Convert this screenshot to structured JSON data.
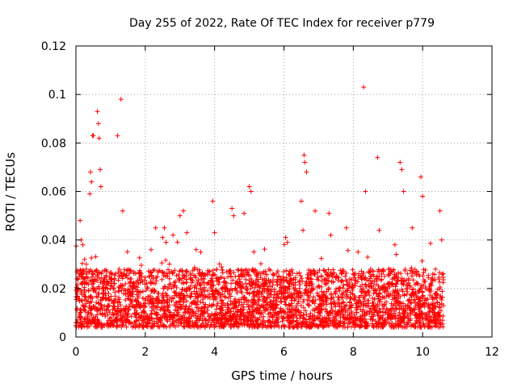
{
  "chart_data": {
    "type": "scatter",
    "title": "Day 255 of 2022, Rate Of TEC Index for receiver p779",
    "xlabel": "GPS time / hours",
    "ylabel": "ROTI / TECUs",
    "xlim": [
      0,
      12
    ],
    "ylim": [
      0,
      0.12
    ],
    "xticks": [
      0,
      2,
      4,
      6,
      8,
      10,
      12
    ],
    "xtick_labels": [
      "0",
      "2",
      "4",
      "6",
      "8",
      "10",
      "12"
    ],
    "yticks": [
      0,
      0.02,
      0.04,
      0.06,
      0.08,
      0.1,
      0.12
    ],
    "ytick_labels": [
      "0",
      "0.02",
      "0.04",
      "0.06",
      "0.08",
      "0.1",
      "0.12"
    ],
    "grid": true,
    "marker": "+",
    "series": [
      {
        "name": "ROTI",
        "color": "#ff0000",
        "x": [
          0.12,
          0.15,
          0.2,
          0.25,
          0.3,
          0.4,
          0.42,
          0.45,
          0.48,
          0.5,
          0.62,
          0.65,
          0.67,
          0.7,
          0.72,
          1.2,
          1.3,
          1.35,
          2.3,
          2.5,
          2.55,
          2.6,
          2.8,
          3.0,
          3.1,
          3.2,
          3.6,
          3.95,
          4.0,
          4.5,
          4.55,
          4.85,
          5.0,
          5.05,
          6.05,
          6.1,
          6.5,
          6.55,
          6.58,
          6.6,
          6.65,
          6.9,
          7.3,
          7.35,
          7.8,
          8.3,
          8.35,
          8.7,
          8.75,
          9.2,
          9.35,
          9.4,
          9.45,
          9.7,
          9.95,
          10.0,
          10.5,
          10.55,
          0.1,
          0.3,
          0.5,
          0.8,
          1.0,
          1.5,
          1.8,
          2.2,
          2.7,
          3.3,
          3.5,
          4.2,
          4.7,
          5.2,
          5.5,
          5.8,
          6.2,
          6.8,
          7.1,
          7.6,
          8.0,
          8.5,
          8.9,
          9.1,
          9.6,
          10.2,
          10.4,
          1.95,
          2.0,
          6.0,
          7.9,
          8.1
        ],
        "y": [
          0.048,
          0.04,
          0.038,
          0.032,
          0.03,
          0.059,
          0.068,
          0.064,
          0.083,
          0.083,
          0.093,
          0.088,
          0.082,
          0.069,
          0.062,
          0.083,
          0.098,
          0.052,
          0.045,
          0.041,
          0.045,
          0.039,
          0.042,
          0.05,
          0.052,
          0.043,
          0.035,
          0.056,
          0.043,
          0.053,
          0.05,
          0.051,
          0.062,
          0.06,
          0.041,
          0.039,
          0.056,
          0.044,
          0.075,
          0.072,
          0.068,
          0.052,
          0.051,
          0.042,
          0.045,
          0.103,
          0.06,
          0.074,
          0.044,
          0.038,
          0.072,
          0.069,
          0.06,
          0.045,
          0.066,
          0.058,
          0.052,
          0.04,
          0.025,
          0.028,
          0.022,
          0.018,
          0.02,
          0.016,
          0.022,
          0.019,
          0.024,
          0.021,
          0.018,
          0.02,
          0.025,
          0.022,
          0.019,
          0.018,
          0.024,
          0.022,
          0.023,
          0.019,
          0.026,
          0.028,
          0.025,
          0.022,
          0.024,
          0.02,
          0.018,
          0.004,
          0.006,
          0.005,
          0.008,
          0.01
        ]
      }
    ],
    "dense_band": {
      "x_range": [
        0,
        10.6
      ],
      "y_typical_range": [
        0.004,
        0.028
      ],
      "point_count": 3200,
      "seed": 779
    }
  }
}
